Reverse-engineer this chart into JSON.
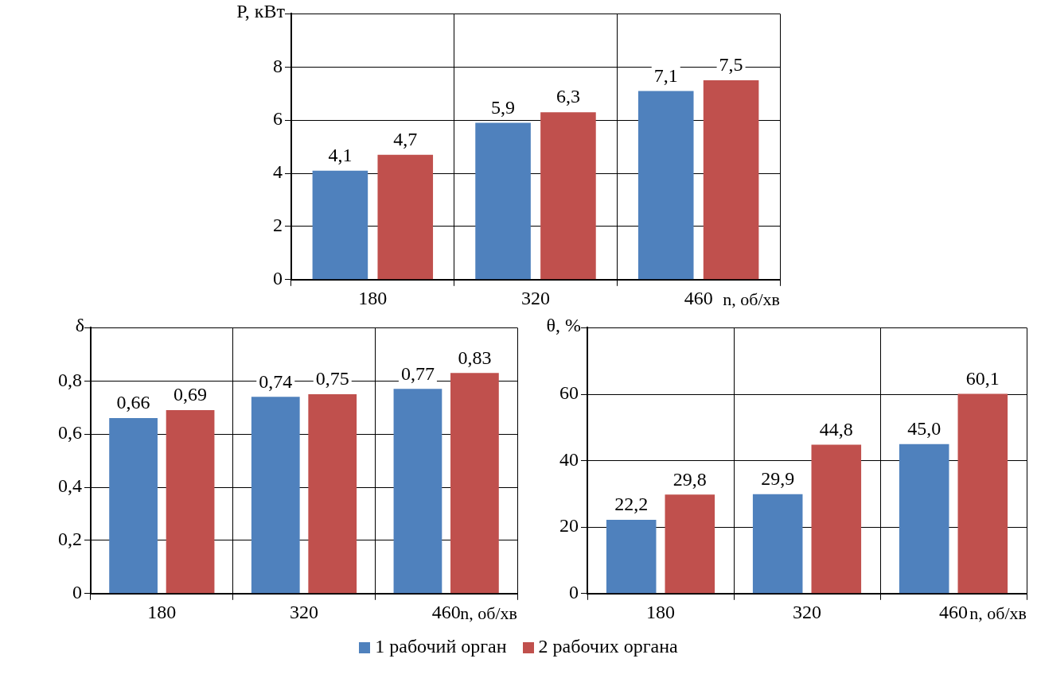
{
  "chart_data": [
    {
      "type": "bar",
      "ylabel": "P, кВт",
      "xlabel": "n, об/хв",
      "categories": [
        "180",
        "320",
        "460"
      ],
      "series": [
        {
          "name": "1 рабочий орган",
          "color": "#4f81bd",
          "values": [
            4.1,
            5.9,
            7.1
          ]
        },
        {
          "name": "2 рабочих органа",
          "color": "#c0504d",
          "values": [
            4.7,
            6.3,
            7.5
          ]
        }
      ],
      "ylim": [
        0,
        10
      ],
      "yticks": [
        0,
        2,
        4,
        6,
        8,
        {
          "value": 10,
          "label": null
        }
      ],
      "grid": true,
      "value_labels": [
        [
          "4,1",
          "5,9",
          "7,1"
        ],
        [
          "4,7",
          "6,3",
          "7,5"
        ]
      ],
      "legend": "bottom"
    },
    {
      "type": "bar",
      "ylabel": "δ",
      "xlabel": "n, об/хв",
      "categories": [
        "180",
        "320",
        "460"
      ],
      "series": [
        {
          "color": "#4f81bd",
          "values": [
            0.66,
            0.74,
            0.77
          ]
        },
        {
          "color": "#c0504d",
          "values": [
            0.69,
            0.75,
            0.83
          ]
        }
      ],
      "ylim": [
        0,
        1
      ],
      "yticks": [
        0,
        {
          "value": 0.2,
          "label": "0,2"
        },
        {
          "value": 0.4,
          "label": "0,4"
        },
        {
          "value": 0.6,
          "label": "0,6"
        },
        {
          "value": 0.8,
          "label": "0,8"
        },
        {
          "value": 1,
          "label": null
        }
      ],
      "grid": true,
      "value_labels": [
        [
          "0,66",
          "0,74",
          "0,77"
        ],
        [
          "0,69",
          "0,75",
          "0,83"
        ]
      ]
    },
    {
      "type": "bar",
      "ylabel": "θ, %",
      "xlabel": "n, об/хв",
      "categories": [
        "180",
        "320",
        "460"
      ],
      "series": [
        {
          "color": "#4f81bd",
          "values": [
            22.2,
            29.9,
            45.0
          ]
        },
        {
          "color": "#c0504d",
          "values": [
            29.8,
            44.8,
            60.1
          ]
        }
      ],
      "ylim": [
        0,
        80
      ],
      "yticks": [
        0,
        20,
        40,
        60,
        {
          "value": 80,
          "label": null
        }
      ],
      "grid": true,
      "value_labels": [
        [
          "22,2",
          "29,9",
          "45,0"
        ],
        [
          "29,8",
          "44,8",
          "60,1"
        ]
      ]
    }
  ]
}
